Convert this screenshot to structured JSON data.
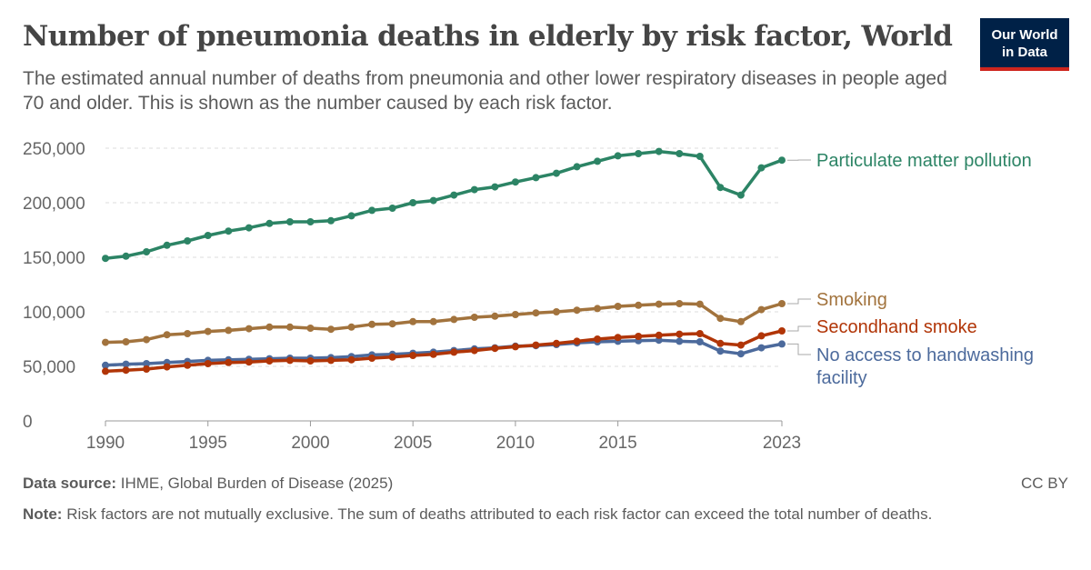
{
  "header": {
    "title": "Number of pneumonia deaths in elderly by risk factor, World",
    "subtitle": "The estimated annual number of deaths from pneumonia and other lower respiratory diseases in people aged 70 and older. This is shown as the number caused by each risk factor."
  },
  "logo": {
    "line1": "Our World",
    "line2": "in Data"
  },
  "footer": {
    "source_label": "Data source:",
    "source_text": "IHME, Global Burden of Disease (2025)",
    "license": "CC BY",
    "note_label": "Note:",
    "note_text": "Risk factors are not mutually exclusive. The sum of deaths attributed to each risk factor can exceed the total number of deaths."
  },
  "chart_data": {
    "type": "line",
    "x": [
      1990,
      1991,
      1992,
      1993,
      1994,
      1995,
      1996,
      1997,
      1998,
      1999,
      2000,
      2001,
      2002,
      2003,
      2004,
      2005,
      2006,
      2007,
      2008,
      2009,
      2010,
      2011,
      2012,
      2013,
      2014,
      2015,
      2016,
      2017,
      2018,
      2019,
      2020,
      2021,
      2022,
      2023
    ],
    "xlim": [
      1990,
      2023
    ],
    "ylim": [
      0,
      250000
    ],
    "grid": true,
    "x_ticks": [
      {
        "value": 1990,
        "label": "1990"
      },
      {
        "value": 1995,
        "label": "1995"
      },
      {
        "value": 2000,
        "label": "2000"
      },
      {
        "value": 2005,
        "label": "2005"
      },
      {
        "value": 2010,
        "label": "2010"
      },
      {
        "value": 2015,
        "label": "2015"
      },
      {
        "value": 2023,
        "label": "2023"
      }
    ],
    "y_ticks": [
      {
        "value": 0,
        "label": "0"
      },
      {
        "value": 50000,
        "label": "50,000"
      },
      {
        "value": 100000,
        "label": "100,000"
      },
      {
        "value": 150000,
        "label": "150,000"
      },
      {
        "value": 200000,
        "label": "200,000"
      },
      {
        "value": 250000,
        "label": "250,000"
      }
    ],
    "series": [
      {
        "name": "Particulate matter pollution",
        "color": "#2c8465",
        "values": [
          149000,
          151000,
          155000,
          161000,
          165000,
          170000,
          174000,
          177000,
          181000,
          182500,
          182500,
          183500,
          188000,
          193000,
          195000,
          200000,
          202000,
          207000,
          212000,
          214500,
          219000,
          223000,
          227000,
          233000,
          238000,
          243000,
          245000,
          247000,
          245000,
          242500,
          214000,
          207000,
          232000,
          239000
        ]
      },
      {
        "name": "Smoking",
        "color": "#a2733d",
        "values": [
          72000,
          72500,
          74500,
          79000,
          80000,
          82000,
          83000,
          84500,
          86000,
          86000,
          85000,
          84000,
          86000,
          88500,
          89000,
          91000,
          91000,
          93000,
          95000,
          96000,
          97500,
          99000,
          100000,
          101500,
          103000,
          105000,
          106000,
          107000,
          107500,
          107000,
          94000,
          91000,
          102000,
          107500
        ]
      },
      {
        "name": "Secondhand smoke",
        "color": "#b13507",
        "values": [
          45500,
          46500,
          47500,
          49500,
          51000,
          52500,
          53500,
          54000,
          55000,
          55500,
          55000,
          55500,
          56000,
          57500,
          58500,
          60000,
          61000,
          63000,
          64500,
          66500,
          68000,
          69500,
          71000,
          73000,
          75000,
          76500,
          77500,
          78500,
          79500,
          80000,
          71000,
          69500,
          78000,
          82500
        ]
      },
      {
        "name": "No access to handwashing facility",
        "color": "#4c6a9c",
        "values": [
          51000,
          52000,
          52500,
          53500,
          54500,
          55500,
          56000,
          56500,
          57000,
          57500,
          57500,
          58000,
          59000,
          60500,
          61000,
          62000,
          63000,
          64500,
          66000,
          67000,
          68500,
          69000,
          70000,
          71500,
          72500,
          73000,
          73500,
          74000,
          73000,
          72500,
          64000,
          61500,
          67000,
          70500
        ]
      }
    ]
  }
}
